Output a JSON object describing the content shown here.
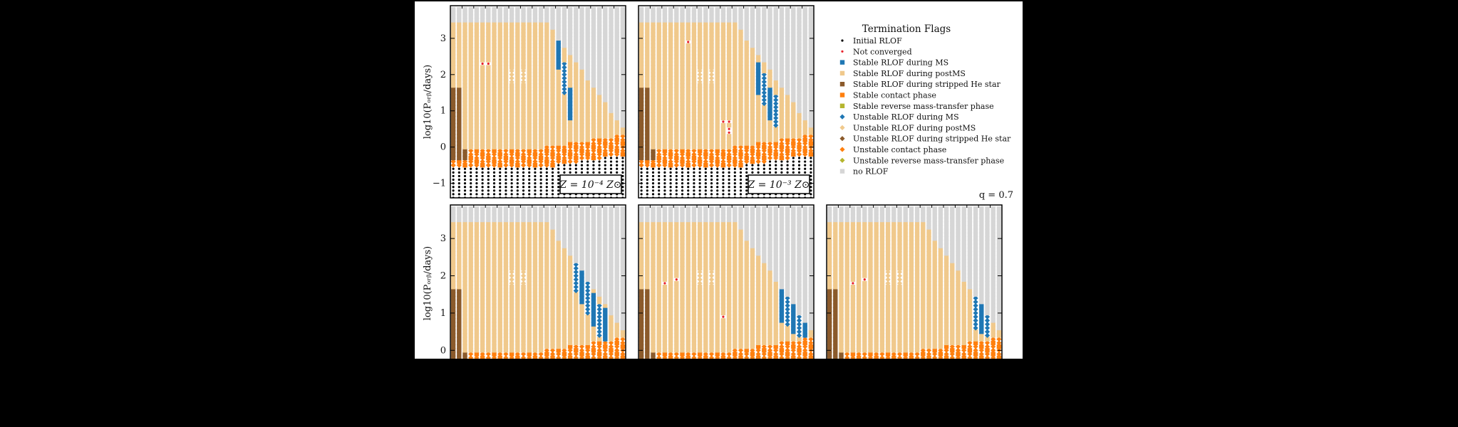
{
  "chart_data": {
    "type": "scatter",
    "description_axes": {
      "ylabel": "log10(P_orb/days)",
      "ylim": [
        -1.4,
        3.9
      ],
      "yticks": [
        -1,
        0,
        1,
        2,
        3
      ]
    },
    "legend": {
      "title": "Termination Flags",
      "placement": "top-right",
      "entries": [
        {
          "key": "initial",
          "label": "Initial RLOF",
          "color": "#000000",
          "marker": "dot"
        },
        {
          "key": "notconv",
          "label": "Not converged",
          "color": "#e8202a",
          "marker": "dot"
        },
        {
          "key": "s_ms",
          "label": "Stable RLOF during MS",
          "color": "#1f77b4",
          "marker": "square"
        },
        {
          "key": "s_post",
          "label": "Stable RLOF during postMS",
          "color": "#f0c98c",
          "marker": "square"
        },
        {
          "key": "s_he",
          "label": "Stable RLOF during stripped He star",
          "color": "#8b5a2b",
          "marker": "square"
        },
        {
          "key": "s_contact",
          "label": "Stable contact phase",
          "color": "#ff7f0e",
          "marker": "square"
        },
        {
          "key": "s_rev",
          "label": "Stable reverse mass-transfer phase",
          "color": "#b5b52e",
          "marker": "square"
        },
        {
          "key": "u_ms",
          "label": "Unstable RLOF during MS",
          "color": "#1f77b4",
          "marker": "diamond"
        },
        {
          "key": "u_post",
          "label": "Unstable RLOF during postMS",
          "color": "#f0c98c",
          "marker": "diamond"
        },
        {
          "key": "u_he",
          "label": "Unstable RLOF during stripped He star",
          "color": "#8b5a2b",
          "marker": "diamond"
        },
        {
          "key": "u_contact",
          "label": "Unstable contact phase",
          "color": "#ff7f0e",
          "marker": "diamond"
        },
        {
          "key": "u_rev",
          "label": "Unstable reverse mass-transfer phase",
          "color": "#b5b52e",
          "marker": "diamond"
        },
        {
          "key": "norlof",
          "label": "no RLOF",
          "color": "#d6d6d6",
          "marker": "square"
        }
      ]
    },
    "q_label": "q = 0.7",
    "grid": {
      "x_columns": 30,
      "log_p_step": 0.1
    },
    "panels": [
      {
        "id": "p1",
        "z_label": "Z = 10⁻⁴ Z⊙",
        "ylabel": "log10(Pₒᵣᵦ/days)",
        "blue_band": [
          [
            0.6,
            3.0
          ],
          [
            0.7,
            1.0
          ]
        ],
        "notconv": [
          [
            0.19,
            2.3
          ]
        ]
      },
      {
        "id": "p2",
        "z_label": "Z = 10⁻³ Z⊙",
        "ylabel": "",
        "blue_band": [
          [
            0.66,
            2.2
          ],
          [
            0.78,
            1.0
          ]
        ],
        "notconv": [
          [
            0.28,
            2.9
          ],
          [
            0.5,
            0.7
          ],
          [
            0.53,
            0.45
          ]
        ]
      },
      {
        "id": "p3",
        "z_label": "",
        "ylabel": "log10(Pₒᵣᵦ/days)",
        "blue_band": [
          [
            0.7,
            2.2
          ],
          [
            0.88,
            0.7
          ]
        ],
        "notconv": []
      },
      {
        "id": "p4",
        "z_label": "",
        "ylabel": "",
        "blue_band": [
          [
            0.8,
            1.3
          ],
          [
            0.95,
            0.7
          ]
        ],
        "notconv": [
          [
            0.15,
            1.8
          ],
          [
            0.22,
            1.9
          ],
          [
            0.48,
            0.9
          ]
        ]
      },
      {
        "id": "p5",
        "z_label": "",
        "ylabel": "",
        "blue_band": [
          [
            0.85,
            1.0
          ],
          [
            0.92,
            0.8
          ]
        ],
        "notconv": [
          [
            0.15,
            1.8
          ],
          [
            0.2,
            1.9
          ]
        ]
      }
    ]
  }
}
